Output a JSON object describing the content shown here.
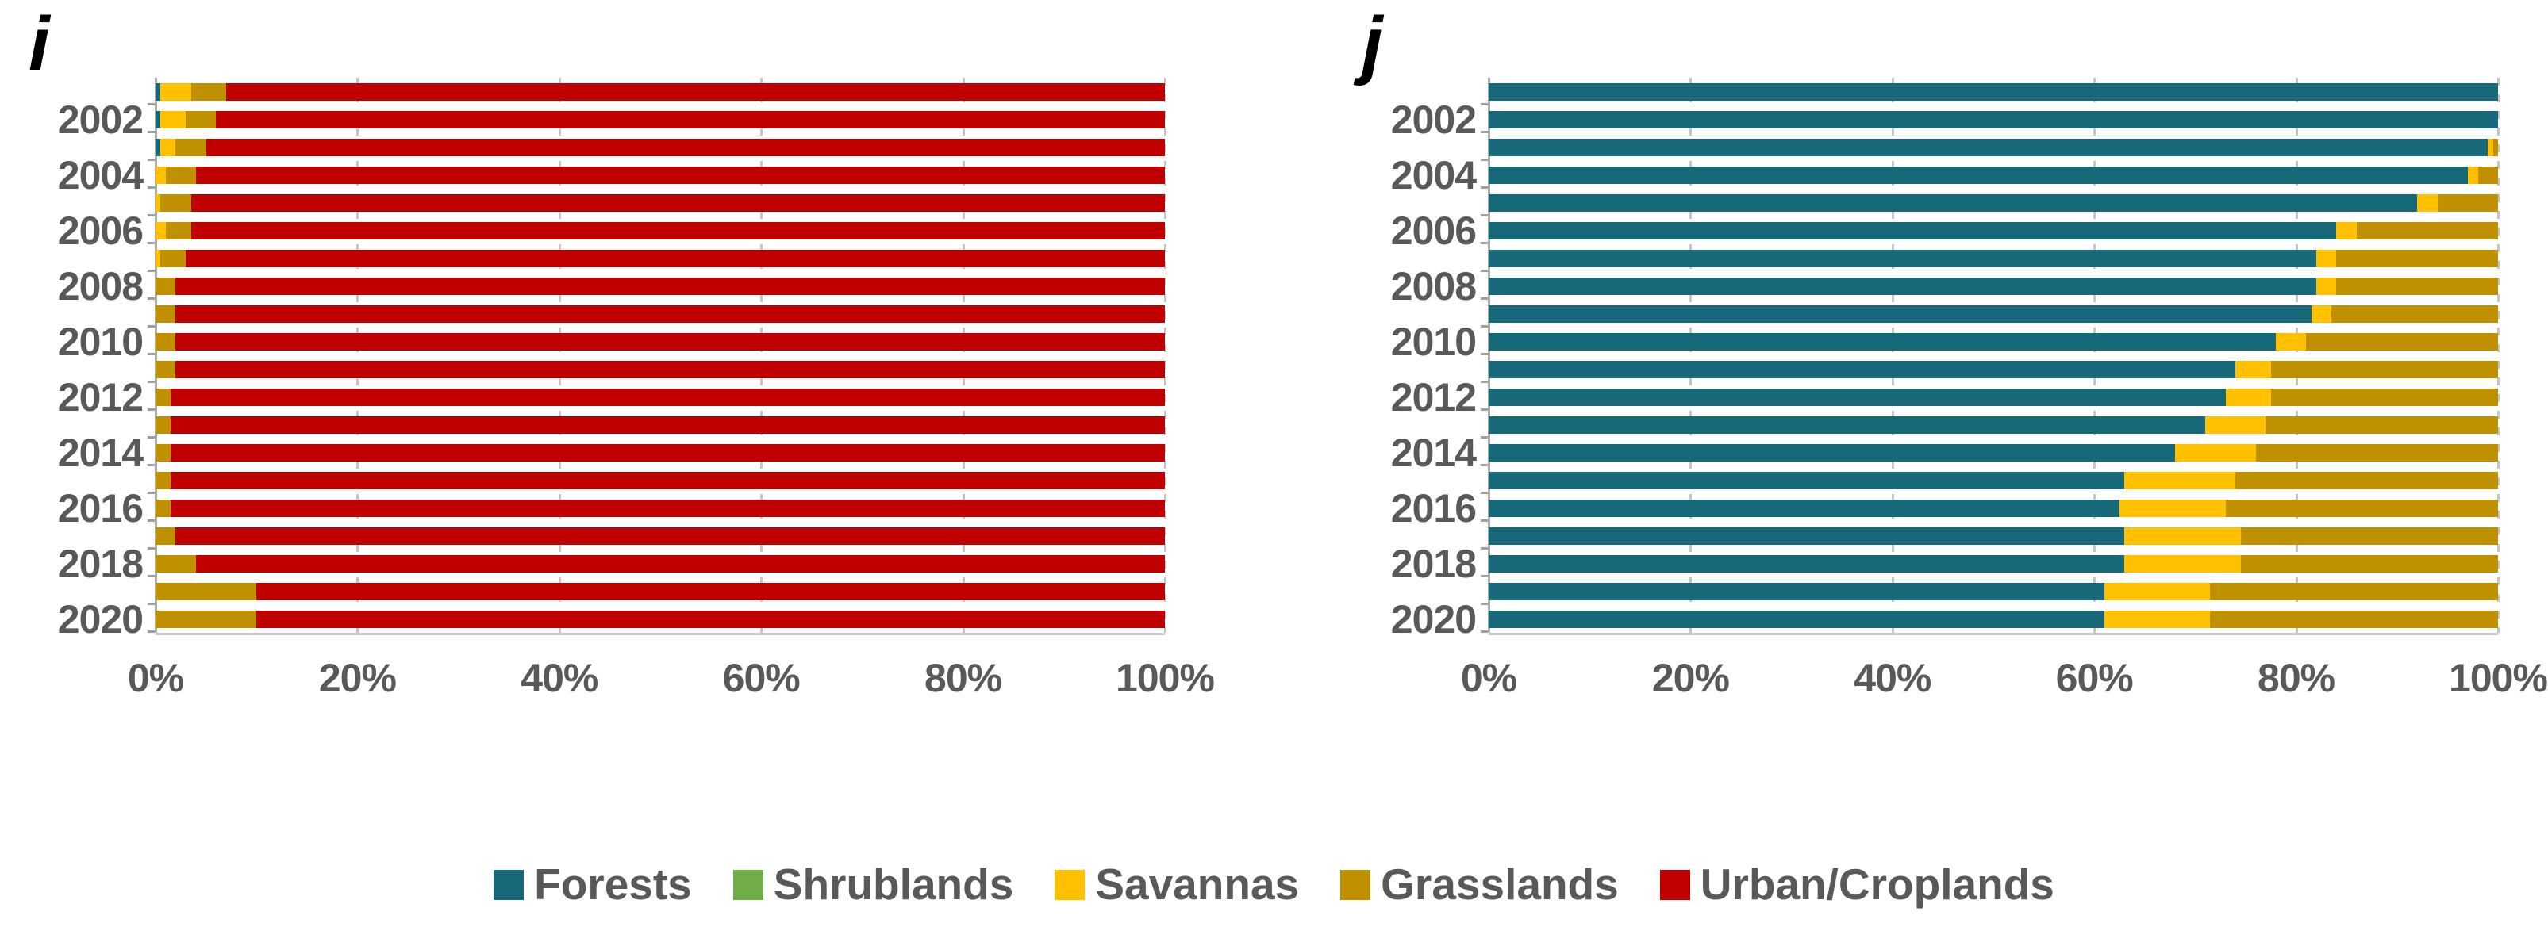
{
  "colors": {
    "forests": "#17697A",
    "shrublands": "#70AD47",
    "savannas": "#FFC000",
    "grasslands": "#BF9000",
    "urban_croplands": "#C00000",
    "label_gray": "#595959",
    "gridline": "#C6C6C6",
    "axis": "#ABABAB"
  },
  "legend": {
    "items": [
      {
        "label": "Forests",
        "color_key": "forests"
      },
      {
        "label": "Shrublands",
        "color_key": "shrublands"
      },
      {
        "label": "Savannas",
        "color_key": "savannas"
      },
      {
        "label": "Grasslands",
        "color_key": "grasslands"
      },
      {
        "label": "Urban/Croplands",
        "color_key": "urban_croplands"
      }
    ]
  },
  "chart_data": [
    {
      "type": "bar",
      "orientation": "horizontal",
      "stacked": true,
      "panel_label": "i",
      "unit": "percent of area",
      "categories": [
        "2001",
        "2002",
        "2003",
        "2004",
        "2005",
        "2006",
        "2007",
        "2008",
        "2009",
        "2010",
        "2011",
        "2012",
        "2013",
        "2014",
        "2015",
        "2016",
        "2017",
        "2018",
        "2019",
        "2020"
      ],
      "y_tick_labels_shown": [
        "2002",
        "2004",
        "2006",
        "2008",
        "2010",
        "2012",
        "2014",
        "2016",
        "2018",
        "2020"
      ],
      "x_tick_labels": [
        "0%",
        "20%",
        "40%",
        "60%",
        "80%",
        "100%"
      ],
      "x_ticks_values": [
        0,
        20,
        40,
        60,
        80,
        100
      ],
      "xlim": [
        0,
        100
      ],
      "grid": "vertical-dashed",
      "series": [
        {
          "name": "Forests",
          "color_key": "forests",
          "values": [
            0.5,
            0.5,
            0.5,
            0,
            0,
            0,
            0,
            0,
            0,
            0,
            0,
            0,
            0,
            0,
            0,
            0,
            0,
            0,
            0,
            0
          ]
        },
        {
          "name": "Shrublands",
          "color_key": "shrublands",
          "values": [
            0,
            0,
            0,
            0,
            0,
            0,
            0,
            0,
            0,
            0,
            0,
            0,
            0,
            0,
            0,
            0,
            0,
            0,
            0,
            0
          ]
        },
        {
          "name": "Savannas",
          "color_key": "savannas",
          "values": [
            3,
            2.5,
            1.5,
            1,
            0.5,
            1,
            0.5,
            0,
            0,
            0,
            0,
            0,
            0,
            0,
            0,
            0,
            0,
            0,
            0,
            0
          ]
        },
        {
          "name": "Grasslands",
          "color_key": "grasslands",
          "values": [
            3.5,
            3,
            3,
            3,
            3,
            2.5,
            2.5,
            2,
            2,
            2,
            2,
            1.5,
            1.5,
            1.5,
            1.5,
            1.5,
            2,
            4,
            10,
            10
          ]
        },
        {
          "name": "Urban/Croplands",
          "color_key": "urban_croplands",
          "values": [
            93,
            94,
            95,
            96,
            96.5,
            96.5,
            97,
            98,
            98,
            98,
            98,
            98.5,
            98.5,
            98.5,
            98.5,
            98.5,
            98,
            96,
            90,
            90
          ]
        }
      ]
    },
    {
      "type": "bar",
      "orientation": "horizontal",
      "stacked": true,
      "panel_label": "j",
      "unit": "percent of area",
      "categories": [
        "2001",
        "2002",
        "2003",
        "2004",
        "2005",
        "2006",
        "2007",
        "2008",
        "2009",
        "2010",
        "2011",
        "2012",
        "2013",
        "2014",
        "2015",
        "2016",
        "2017",
        "2018",
        "2019",
        "2020"
      ],
      "y_tick_labels_shown": [
        "2002",
        "2004",
        "2006",
        "2008",
        "2010",
        "2012",
        "2014",
        "2016",
        "2018",
        "2020"
      ],
      "x_tick_labels": [
        "0%",
        "20%",
        "40%",
        "60%",
        "80%",
        "100%"
      ],
      "x_ticks_values": [
        0,
        20,
        40,
        60,
        80,
        100
      ],
      "xlim": [
        0,
        100
      ],
      "grid": "vertical-dashed",
      "series": [
        {
          "name": "Forests",
          "color_key": "forests",
          "values": [
            100,
            100,
            99,
            97,
            92,
            84,
            82,
            82,
            81.5,
            78,
            74,
            73,
            71,
            68,
            63,
            62.5,
            63,
            63,
            61,
            61
          ]
        },
        {
          "name": "Shrublands",
          "color_key": "shrublands",
          "values": [
            0,
            0,
            0,
            0,
            0,
            0,
            0,
            0,
            0,
            0,
            0,
            0,
            0,
            0,
            0,
            0,
            0,
            0,
            0,
            0
          ]
        },
        {
          "name": "Savannas",
          "color_key": "savannas",
          "values": [
            0,
            0,
            0.5,
            1,
            2,
            2,
            2,
            2,
            2,
            3,
            3.5,
            4.5,
            6,
            8,
            11,
            10.5,
            11.5,
            11.5,
            10.5,
            10.5
          ]
        },
        {
          "name": "Grasslands",
          "color_key": "grasslands",
          "values": [
            0,
            0,
            0.5,
            2,
            6,
            14,
            16,
            16,
            16.5,
            19,
            22.5,
            22.5,
            23,
            24,
            26,
            27,
            25.5,
            25.5,
            28.5,
            28.5
          ]
        },
        {
          "name": "Urban/Croplands",
          "color_key": "urban_croplands",
          "values": [
            0,
            0,
            0,
            0,
            0,
            0,
            0,
            0,
            0,
            0,
            0,
            0,
            0,
            0,
            0,
            0,
            0,
            0,
            0,
            0
          ]
        }
      ]
    }
  ],
  "layout_labels": {
    "panel_i_letter": "i",
    "panel_j_letter": "j"
  }
}
